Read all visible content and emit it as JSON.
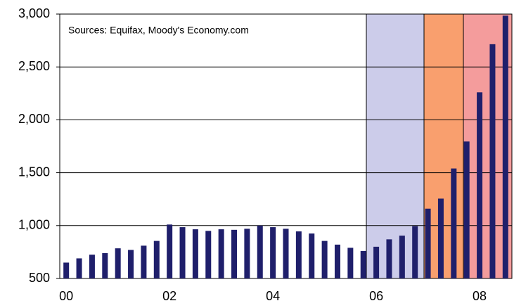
{
  "chart_data": {
    "type": "bar",
    "annotation": "Sources: Equifax, Moody's Economy.com",
    "categories": [
      "00",
      null,
      null,
      null,
      null,
      null,
      null,
      null,
      "02",
      null,
      null,
      null,
      null,
      null,
      null,
      null,
      "04",
      null,
      null,
      null,
      null,
      null,
      null,
      null,
      "06",
      null,
      null,
      null,
      null,
      null,
      null,
      null,
      "08",
      null,
      null
    ],
    "values": [
      650,
      690,
      725,
      740,
      785,
      770,
      810,
      855,
      1010,
      985,
      965,
      950,
      965,
      960,
      970,
      1000,
      985,
      970,
      945,
      925,
      855,
      820,
      790,
      760,
      800,
      870,
      905,
      995,
      1160,
      1255,
      1540,
      1795,
      2260,
      2715,
      2985
    ],
    "color": "#1f1f6b",
    "ylim": [
      500,
      3000
    ],
    "yticks": [
      500,
      {
        "value": 1000,
        "label": "1,000"
      },
      {
        "value": 1500,
        "label": "1,500"
      },
      {
        "value": 2000,
        "label": "2,000"
      },
      {
        "value": 2500,
        "label": "2,500"
      },
      {
        "value": 3000,
        "label": "3,000"
      }
    ],
    "grid": true
  }
}
